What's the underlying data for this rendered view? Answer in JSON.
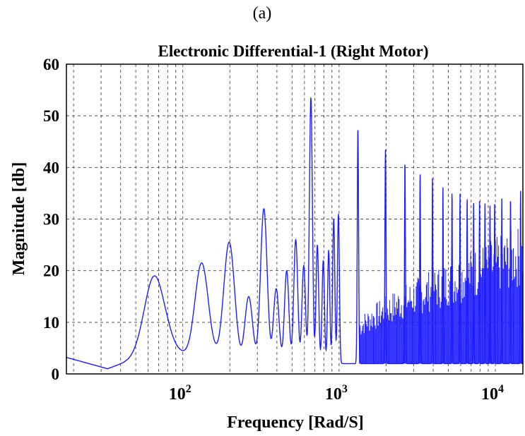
{
  "panel_label": "(a)",
  "chart_data": {
    "type": "line",
    "title": "Electronic Differential-1 (Right Motor)",
    "xlabel": "Frequency [Rad/S]",
    "ylabel": "Magnitude [db]",
    "x_scale": "log",
    "xlim": [
      18,
      15000
    ],
    "ylim": [
      0,
      60
    ],
    "grid": true,
    "y_ticks": [
      0,
      10,
      20,
      30,
      40,
      50,
      60
    ],
    "y_tick_labels": [
      "0",
      "10",
      "20",
      "30",
      "40",
      "50",
      "60"
    ],
    "x_ticks": [
      100,
      1000,
      10000
    ],
    "x_tick_labels": [
      {
        "base": "10",
        "exp": "2"
      },
      {
        "base": "10",
        "exp": "3"
      },
      {
        "base": "10",
        "exp": "4"
      }
    ],
    "series": [
      {
        "color": "#1f1fff",
        "peaks": [
          {
            "f": 66,
            "mag": 19,
            "width": 0.09
          },
          {
            "f": 132,
            "mag": 21.5,
            "width": 0.06
          },
          {
            "f": 198,
            "mag": 25.5,
            "width": 0.05
          },
          {
            "f": 264,
            "mag": 15,
            "width": 0.035
          },
          {
            "f": 330,
            "mag": 32,
            "width": 0.03
          },
          {
            "f": 396,
            "mag": 16.5,
            "width": 0.025
          },
          {
            "f": 462,
            "mag": 20,
            "width": 0.02
          },
          {
            "f": 528,
            "mag": 26,
            "width": 0.018
          },
          {
            "f": 594,
            "mag": 21,
            "width": 0.016
          },
          {
            "f": 660,
            "mag": 53.5,
            "width": 0.014
          },
          {
            "f": 726,
            "mag": 25,
            "width": 0.012
          },
          {
            "f": 792,
            "mag": 22,
            "width": 0.011
          },
          {
            "f": 858,
            "mag": 24,
            "width": 0.01
          },
          {
            "f": 924,
            "mag": 30,
            "width": 0.01
          },
          {
            "f": 990,
            "mag": 31,
            "width": 0.009
          },
          {
            "f": 1320,
            "mag": 47.5,
            "width": 0.006
          },
          {
            "f": 1980,
            "mag": 43.5,
            "width": 0.005
          },
          {
            "f": 2640,
            "mag": 41,
            "width": 0.004
          },
          {
            "f": 3300,
            "mag": 39,
            "width": 0.004
          },
          {
            "f": 3960,
            "mag": 38,
            "width": 0.003
          },
          {
            "f": 4620,
            "mag": 36.5,
            "width": 0.003
          },
          {
            "f": 5280,
            "mag": 35.5,
            "width": 0.003
          },
          {
            "f": 5940,
            "mag": 35,
            "width": 0.003
          },
          {
            "f": 6600,
            "mag": 34.5,
            "width": 0.003
          },
          {
            "f": 7260,
            "mag": 34,
            "width": 0.003
          },
          {
            "f": 7920,
            "mag": 33.5,
            "width": 0.003
          },
          {
            "f": 8580,
            "mag": 33,
            "width": 0.003
          },
          {
            "f": 9240,
            "mag": 33,
            "width": 0.003
          },
          {
            "f": 9900,
            "mag": 33.5,
            "width": 0.003
          },
          {
            "f": 11000,
            "mag": 34,
            "width": 0.003
          },
          {
            "f": 12500,
            "mag": 34.5,
            "width": 0.003
          },
          {
            "f": 14500,
            "mag": 35.5,
            "width": 0.003
          }
        ],
        "baseline": [
          {
            "f": 18,
            "mag": 3.2
          },
          {
            "f": 33,
            "mag": 1
          },
          {
            "f": 50,
            "mag": 3
          },
          {
            "f": 80,
            "mag": 5
          },
          {
            "f": 110,
            "mag": 3.5
          },
          {
            "f": 160,
            "mag": 3
          },
          {
            "f": 220,
            "mag": 1.5
          },
          {
            "f": 300,
            "mag": 2
          },
          {
            "f": 1000,
            "mag": 2
          },
          {
            "f": 15000,
            "mag": 2
          }
        ],
        "dense_band": {
          "f_start": 1350,
          "f_end": 15000,
          "low": 2,
          "high_start": 11,
          "high_end": 29
        }
      }
    ]
  }
}
